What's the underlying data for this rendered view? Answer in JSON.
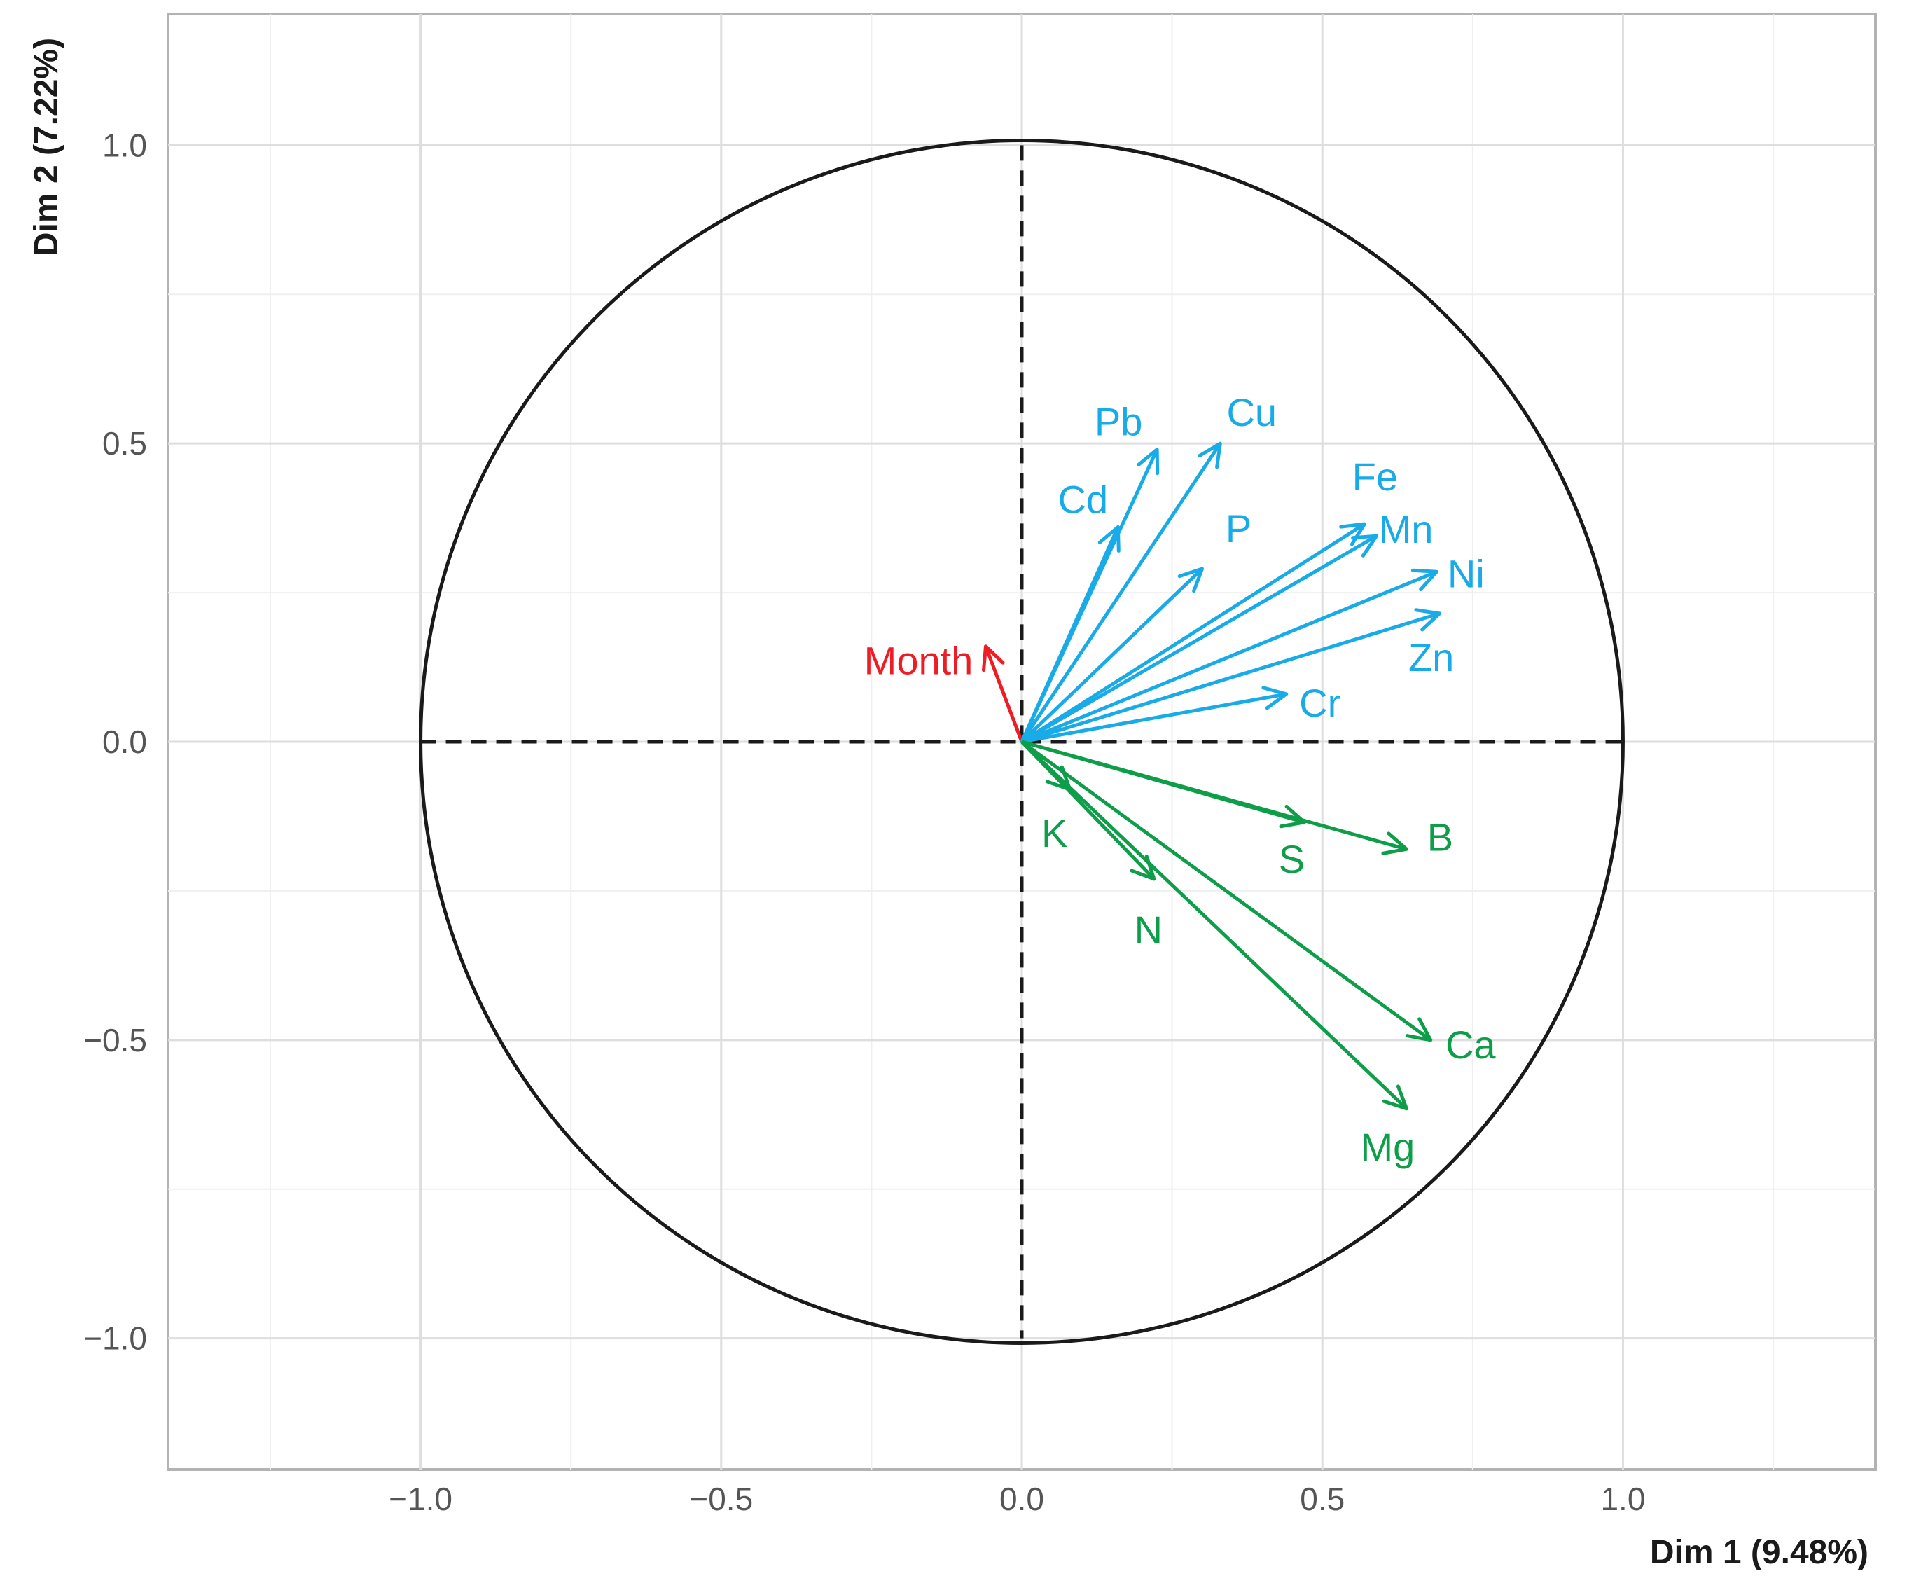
{
  "chart_data": {
    "type": "scatter",
    "subtype": "PCA variable correlation circle",
    "xlabel": "Dim 1 (9.48%)",
    "ylabel": "Dim 2 (7.22%)",
    "xlim": [
      -1.42,
      1.42
    ],
    "ylim": [
      -1.22,
      1.22
    ],
    "x_ticks": [
      -1.0,
      -0.5,
      0.0,
      0.5,
      1.0
    ],
    "x_tick_labels": [
      "−1.0",
      "−0.5",
      "0.0",
      "0.5",
      "1.0"
    ],
    "y_ticks": [
      -1.0,
      -0.5,
      0.0,
      0.5,
      1.0
    ],
    "y_tick_labels": [
      "−1.0",
      "−0.5",
      "0.0",
      "0.5",
      "1.0"
    ],
    "grid": true,
    "unit_circle": true,
    "reference_lines": "dashed at x=0 and y=0",
    "colors": {
      "cluster1": "#18ABE8",
      "cluster2": "#0E9E4A",
      "month": "#EE1C24"
    },
    "vectors": [
      {
        "name": "Month",
        "x": -0.06,
        "y": 0.16,
        "group": "month"
      },
      {
        "name": "Pb",
        "x": 0.225,
        "y": 0.49,
        "group": "cluster1"
      },
      {
        "name": "Cu",
        "x": 0.33,
        "y": 0.5,
        "group": "cluster1"
      },
      {
        "name": "Cd",
        "x": 0.16,
        "y": 0.36,
        "group": "cluster1"
      },
      {
        "name": "P",
        "x": 0.3,
        "y": 0.29,
        "group": "cluster1"
      },
      {
        "name": "Fe",
        "x": 0.57,
        "y": 0.365,
        "group": "cluster1"
      },
      {
        "name": "Mn",
        "x": 0.59,
        "y": 0.345,
        "group": "cluster1"
      },
      {
        "name": "Ni",
        "x": 0.69,
        "y": 0.285,
        "group": "cluster1"
      },
      {
        "name": "Zn",
        "x": 0.695,
        "y": 0.215,
        "group": "cluster1"
      },
      {
        "name": "Cr",
        "x": 0.44,
        "y": 0.08,
        "group": "cluster1"
      },
      {
        "name": "K",
        "x": 0.08,
        "y": -0.08,
        "group": "cluster2"
      },
      {
        "name": "S",
        "x": 0.47,
        "y": -0.135,
        "group": "cluster2"
      },
      {
        "name": "B",
        "x": 0.64,
        "y": -0.18,
        "group": "cluster2"
      },
      {
        "name": "N",
        "x": 0.22,
        "y": -0.23,
        "group": "cluster2"
      },
      {
        "name": "Ca",
        "x": 0.68,
        "y": -0.5,
        "group": "cluster2"
      },
      {
        "name": "Mg",
        "x": 0.64,
        "y": -0.615,
        "group": "cluster2"
      }
    ]
  }
}
